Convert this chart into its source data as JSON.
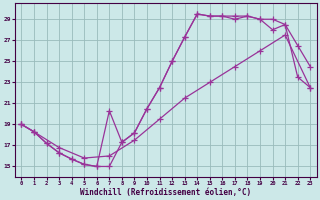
{
  "xlabel": "Windchill (Refroidissement éolien,°C)",
  "bg_color": "#cce8e8",
  "grid_color": "#99bbbb",
  "line_color": "#993399",
  "xlim": [
    -0.5,
    23.5
  ],
  "ylim": [
    14.0,
    30.5
  ],
  "yticks": [
    15,
    17,
    19,
    21,
    23,
    25,
    27,
    29
  ],
  "xticks": [
    0,
    1,
    2,
    3,
    4,
    5,
    6,
    7,
    8,
    9,
    10,
    11,
    12,
    13,
    14,
    15,
    16,
    17,
    18,
    19,
    20,
    21,
    22,
    23
  ],
  "line1_x": [
    0,
    1,
    2,
    3,
    4,
    5,
    6,
    7,
    8,
    9,
    10,
    11,
    12,
    13,
    14,
    15,
    16,
    17,
    18,
    19,
    20,
    21,
    22,
    23
  ],
  "line1_y": [
    19.0,
    18.3,
    17.2,
    16.3,
    15.7,
    15.2,
    15.0,
    15.0,
    17.3,
    18.2,
    20.5,
    22.5,
    25.0,
    27.3,
    29.5,
    29.3,
    29.3,
    29.3,
    29.3,
    29.0,
    29.0,
    28.5,
    26.5,
    24.5
  ],
  "line2_x": [
    0,
    1,
    2,
    3,
    4,
    5,
    6,
    7,
    8,
    9,
    10,
    11,
    12,
    13,
    14,
    15,
    16,
    17,
    18,
    19,
    20,
    21,
    22,
    23
  ],
  "line2_y": [
    19.0,
    18.3,
    17.2,
    16.3,
    15.7,
    15.2,
    15.0,
    20.3,
    17.3,
    18.2,
    20.5,
    22.5,
    25.0,
    27.3,
    29.5,
    29.3,
    29.3,
    29.0,
    29.3,
    29.0,
    28.0,
    28.5,
    23.5,
    22.5
  ],
  "line3_x": [
    0,
    1,
    3,
    5,
    7,
    9,
    11,
    13,
    15,
    17,
    19,
    21,
    23
  ],
  "line3_y": [
    19.0,
    18.3,
    16.8,
    15.8,
    16.0,
    17.5,
    19.5,
    21.5,
    23.0,
    24.5,
    26.0,
    27.5,
    22.5
  ]
}
